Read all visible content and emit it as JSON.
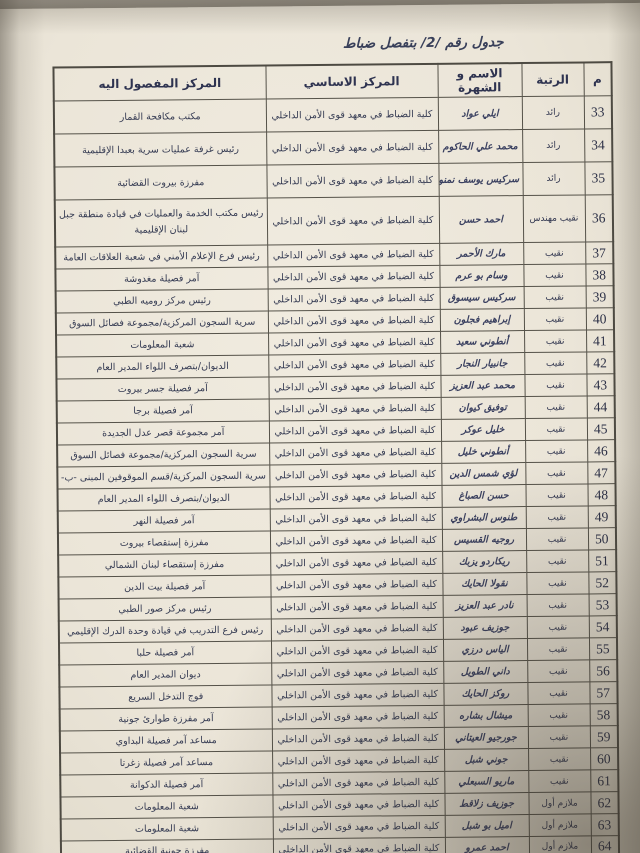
{
  "photo": {
    "background_color": "#9d978c",
    "paper_color": "#ebe5d8",
    "ink_color": "#323750",
    "border_color": "#555249"
  },
  "title": "جدول رقم /2/ بتفصل ضباط",
  "table": {
    "headers": {
      "num": "م",
      "rank": "الرتبة",
      "name": "الاسم و الشهرة",
      "base": "المركز الاساسي",
      "dest": "المركز المفصول اليه"
    },
    "base_center": "كلية الضباط في معهد قوى الأمن الداخلي",
    "rows": [
      {
        "num": "33",
        "rank": "رائد",
        "name": "ايلي عواد",
        "dest": "مكتب مكافحة القمار"
      },
      {
        "num": "34",
        "rank": "رائد",
        "name": "محمد علي الحاكوم",
        "dest": "رئيس غرفة عمليات سرية بعبدا الإقليمية"
      },
      {
        "num": "35",
        "rank": "رائد",
        "name": "سركيس يوسف نمنوم",
        "dest": "مفرزة بيروت القضائية"
      },
      {
        "num": "36",
        "rank": "نقيب مهندس",
        "name": "احمد حسن",
        "dest": "رئيس مكتب الخدمة والعمليات في قيادة منطقة جبل لبنان الإقليمية"
      },
      {
        "num": "37",
        "rank": "نقيب",
        "name": "مارك الأحمر",
        "dest": "رئيس فرع الإعلام الأمني في شعبة العلاقات العامة"
      },
      {
        "num": "38",
        "rank": "نقيب",
        "name": "وسام بو عرم",
        "dest": "آمر فصيلة مغدوشة"
      },
      {
        "num": "39",
        "rank": "نقيب",
        "name": "سركيس سيسوق",
        "dest": "رئيس مركز روميه الطبي"
      },
      {
        "num": "40",
        "rank": "نقيب",
        "name": "إبراهيم فجلون",
        "dest": "سرية السجون المركزية/مجموعة فصائل السوق"
      },
      {
        "num": "41",
        "rank": "نقيب",
        "name": "أنطوني سعيد",
        "dest": "شعبة المعلومات"
      },
      {
        "num": "42",
        "rank": "نقيب",
        "name": "جانبيار النجار",
        "dest": "الديوان/بتصرف اللواء المدير العام"
      },
      {
        "num": "43",
        "rank": "نقيب",
        "name": "محمد عبد العزيز",
        "dest": "آمر فصيلة جسر بيروت"
      },
      {
        "num": "44",
        "rank": "نقيب",
        "name": "توفيق كيوان",
        "dest": "آمر فصيلة برجا"
      },
      {
        "num": "45",
        "rank": "نقيب",
        "name": "خليل عوكر",
        "dest": "آمر مجموعة قصر عدل الجديدة"
      },
      {
        "num": "46",
        "rank": "نقيب",
        "name": "أنطوني خليل",
        "dest": "سرية السجون المركزية/مجموعة فصائل السوق"
      },
      {
        "num": "47",
        "rank": "نقيب",
        "name": "لؤي شمس الدين",
        "dest": "سرية السجون المركزية/قسم الموقوفين المبنى -ب-"
      },
      {
        "num": "48",
        "rank": "نقيب",
        "name": "حسن الصباغ",
        "dest": "الديوان/بتصرف اللواء المدير العام"
      },
      {
        "num": "49",
        "rank": "نقيب",
        "name": "طنوس البشراوي",
        "dest": "آمر فصيلة النهر"
      },
      {
        "num": "50",
        "rank": "نقيب",
        "name": "روجيه القسيس",
        "dest": "مفرزة إستقصاء بيروت"
      },
      {
        "num": "51",
        "rank": "نقيب",
        "name": "ريكاردو يزبك",
        "dest": "مفرزة إستقصاء لبنان الشمالي"
      },
      {
        "num": "52",
        "rank": "نقيب",
        "name": "نقولا الحايك",
        "dest": "آمر فصيلة بيت الدين"
      },
      {
        "num": "53",
        "rank": "نقيب",
        "name": "نادر عبد العزيز",
        "dest": "رئيس مركز صور الطبي"
      },
      {
        "num": "54",
        "rank": "نقيب",
        "name": "جوزيف عبود",
        "dest": "رئيس فرع التدريب في قيادة وحدة الدرك الإقليمي"
      },
      {
        "num": "55",
        "rank": "نقيب",
        "name": "الياس درزي",
        "dest": "آمر فصيلة حلبا"
      },
      {
        "num": "56",
        "rank": "نقيب",
        "name": "داني الطويل",
        "dest": "ديوان المدير العام"
      },
      {
        "num": "57",
        "rank": "نقيب",
        "name": "روكز الحايك",
        "dest": "فوج التدخل السريع"
      },
      {
        "num": "58",
        "rank": "نقيب",
        "name": "ميشال بشاره",
        "dest": "آمر مفرزة طوارئ جونية"
      },
      {
        "num": "59",
        "rank": "نقيب",
        "name": "جورجيو العيتاني",
        "dest": "مساعد آمر فصيلة البداوي"
      },
      {
        "num": "60",
        "rank": "نقيب",
        "name": "جوني شبل",
        "dest": "مساعد آمر فصيلة زغرتا"
      },
      {
        "num": "61",
        "rank": "نقيب",
        "name": "ماريو السبعلي",
        "dest": "آمر فصيلة الدكوانة"
      },
      {
        "num": "62",
        "rank": "ملازم أول",
        "name": "جوزيف زلاقط",
        "dest": "شعبة المعلومات"
      },
      {
        "num": "63",
        "rank": "ملازم أول",
        "name": "اميل بو شبل",
        "dest": "شعبة المعلومات"
      },
      {
        "num": "64",
        "rank": "ملازم أول",
        "name": "احمد عمرو",
        "dest": "مفرزة جونية القضائية"
      }
    ]
  }
}
